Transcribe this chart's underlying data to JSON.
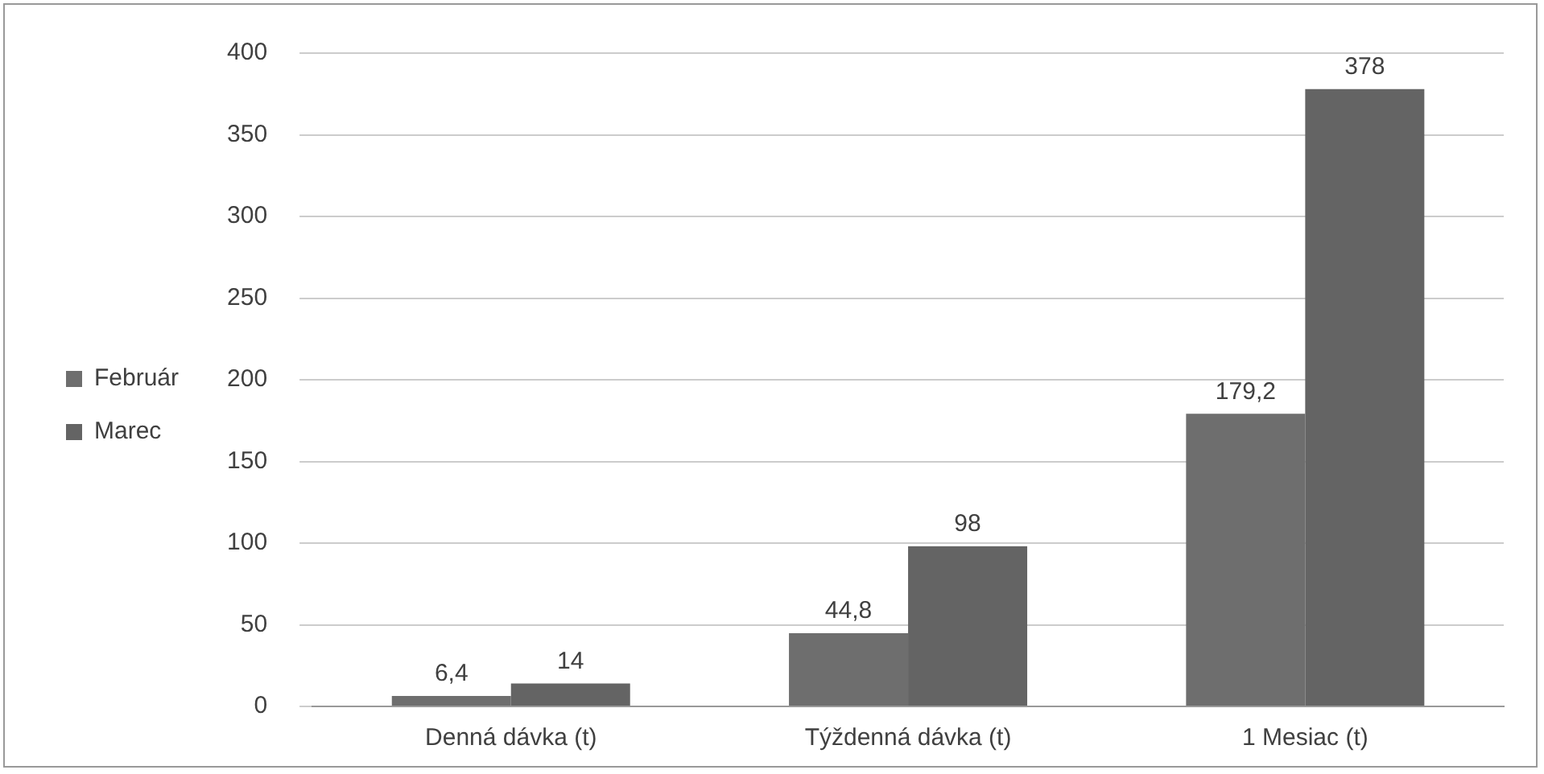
{
  "chart_data": {
    "type": "bar",
    "categories": [
      "Denná dávka (t)",
      "Týždenná dávka (t)",
      "1 Mesiac (t)"
    ],
    "series": [
      {
        "name": "Február",
        "color": "#6e6e6e",
        "values": [
          6.4,
          44.8,
          179.2
        ],
        "value_labels": [
          "6,4",
          "44,8",
          "179,2"
        ]
      },
      {
        "name": "Marec",
        "color": "#646464",
        "values": [
          14,
          98,
          378
        ],
        "value_labels": [
          "14",
          "98",
          "378"
        ]
      }
    ],
    "ylim": [
      0,
      400
    ],
    "yticks": [
      0,
      50,
      100,
      150,
      200,
      250,
      300,
      350,
      400
    ],
    "grid": "y",
    "legend": "left"
  }
}
